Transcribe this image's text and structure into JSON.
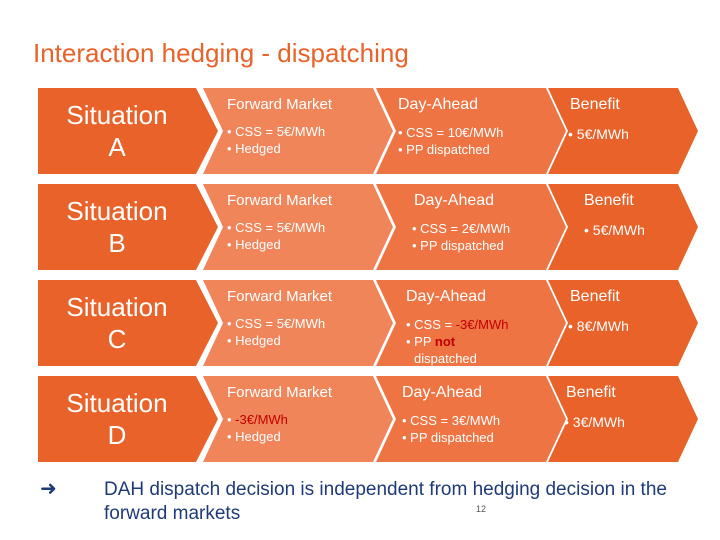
{
  "title": "Interaction hedging - dispatching",
  "colors": {
    "accent": "#e8622a",
    "accent_light": "#f0855a",
    "accent_mid": "#ee7444",
    "text_dark": "#1f3a7a"
  },
  "situations": [
    {
      "label": "Situation\nA",
      "forward": {
        "header": "Forward Market",
        "items": [
          "• CSS = 5€/MWh",
          "• Hedged"
        ]
      },
      "dayahead": {
        "header": "Day-Ahead",
        "items": [
          "• CSS = 10€/MWh",
          "• PP dispatched"
        ]
      },
      "benefit": {
        "header": "Benefit",
        "items": [
          "• 5€/MWh"
        ]
      }
    },
    {
      "label": "Situation\nB",
      "forward": {
        "header": "Forward Market",
        "items": [
          "• CSS = 5€/MWh",
          "• Hedged"
        ]
      },
      "dayahead": {
        "header": "Day-Ahead",
        "items": [
          "• CSS = 2€/MWh",
          "• PP dispatched"
        ]
      },
      "benefit": {
        "header": "Benefit",
        "items": [
          "• 5€/MWh"
        ]
      }
    },
    {
      "label": "Situation\nC",
      "forward": {
        "header": "Forward Market",
        "items": [
          "• CSS = 5€/MWh",
          "• Hedged"
        ]
      },
      "dayahead": {
        "header": "Day-Ahead",
        "items_c": {
          "line1_prefix": "• CSS = ",
          "line1_red": "-3€/MWh",
          "line2_prefix": "• PP ",
          "line2_bold": "not",
          "line3": "dispatched"
        }
      },
      "benefit": {
        "header": "Benefit",
        "items": [
          "• 8€/MWh"
        ]
      }
    },
    {
      "label": "Situation\nD",
      "forward": {
        "header": "Forward Market",
        "items_d": {
          "bullet": "• ",
          "red": "-3€/MWh",
          "line2": "• Hedged"
        }
      },
      "dayahead": {
        "header": "Day-Ahead",
        "items": [
          "• CSS = 3€/MWh",
          "• PP dispatched"
        ]
      },
      "benefit": {
        "header": "Benefit",
        "items": [
          "• 3€/MWh"
        ]
      }
    }
  ],
  "conclusion": "DAH dispatch decision is independent from hedging decision in the forward markets",
  "arrow_icon": "right-arrow-icon",
  "page_number": "12"
}
